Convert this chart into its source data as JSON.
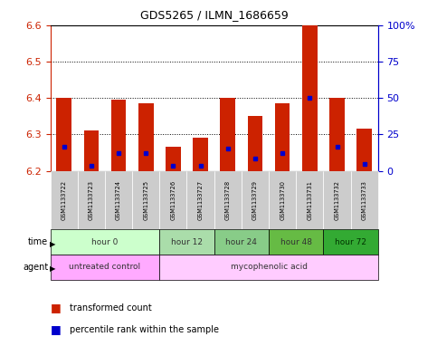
{
  "title": "GDS5265 / ILMN_1686659",
  "samples": [
    "GSM1133722",
    "GSM1133723",
    "GSM1133724",
    "GSM1133725",
    "GSM1133726",
    "GSM1133727",
    "GSM1133728",
    "GSM1133729",
    "GSM1133730",
    "GSM1133731",
    "GSM1133732",
    "GSM1133733"
  ],
  "bar_tops": [
    6.4,
    6.31,
    6.395,
    6.385,
    6.265,
    6.29,
    6.4,
    6.35,
    6.385,
    6.6,
    6.4,
    6.315
  ],
  "bar_base": 6.2,
  "blue_dot_y": [
    6.265,
    6.215,
    6.248,
    6.248,
    6.215,
    6.215,
    6.26,
    6.235,
    6.248,
    6.4,
    6.265,
    6.22
  ],
  "ylim": [
    6.2,
    6.6
  ],
  "y2lim": [
    0,
    100
  ],
  "yticks": [
    6.2,
    6.3,
    6.4,
    6.5,
    6.6
  ],
  "y2ticks": [
    0,
    25,
    50,
    75,
    100
  ],
  "y2labels": [
    "0",
    "25",
    "50",
    "75",
    "100%"
  ],
  "time_groups": [
    {
      "label": "hour 0",
      "start": 0,
      "end": 4,
      "color": "#ccffcc"
    },
    {
      "label": "hour 12",
      "start": 4,
      "end": 6,
      "color": "#aaddaa"
    },
    {
      "label": "hour 24",
      "start": 6,
      "end": 8,
      "color": "#88cc88"
    },
    {
      "label": "hour 48",
      "start": 8,
      "end": 10,
      "color": "#66bb44"
    },
    {
      "label": "hour 72",
      "start": 10,
      "end": 12,
      "color": "#33aa33"
    }
  ],
  "agent_groups": [
    {
      "label": "untreated control",
      "start": 0,
      "end": 4,
      "color": "#ffaaff"
    },
    {
      "label": "mycophenolic acid",
      "start": 4,
      "end": 12,
      "color": "#ffccff"
    }
  ],
  "bar_color": "#cc2200",
  "dot_color": "#0000cc",
  "sample_box_color": "#cccccc",
  "bg_color": "#ffffff"
}
